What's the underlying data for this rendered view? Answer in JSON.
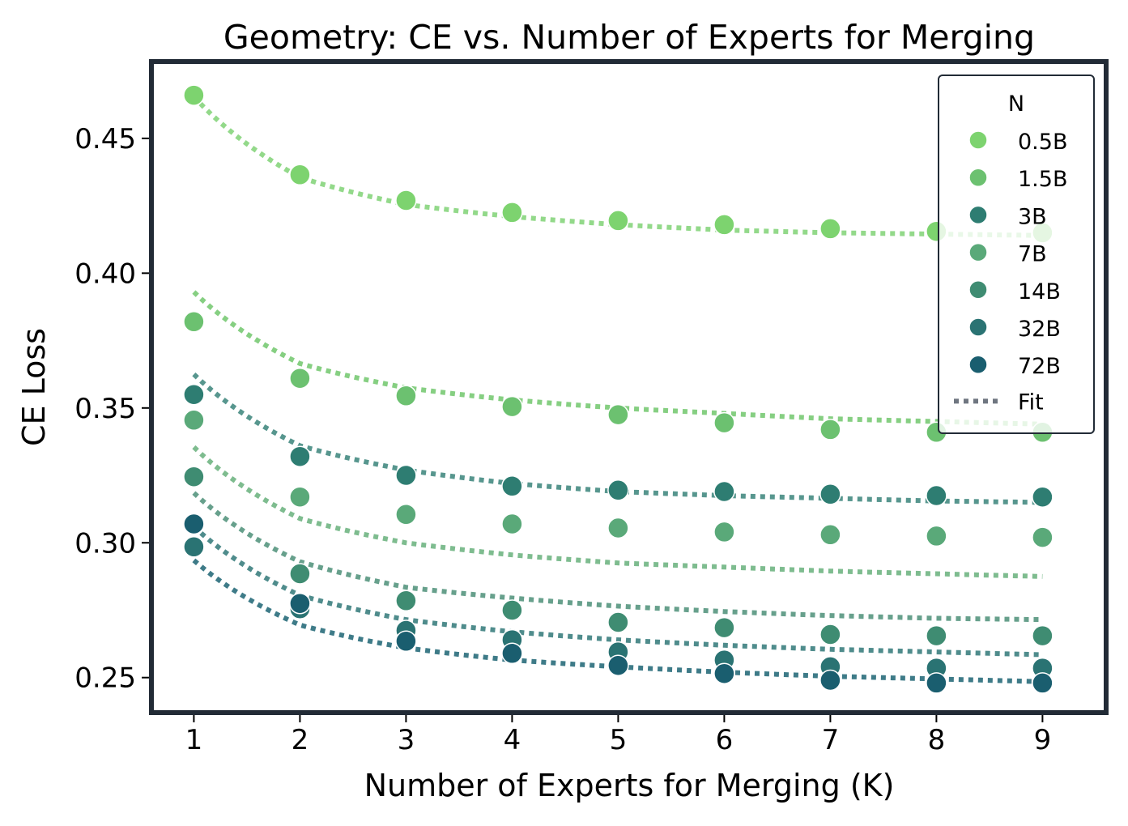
{
  "chart_data": {
    "type": "scatter",
    "title": "Geometry: CE vs. Number of Experts for Merging",
    "xlabel": "Number of Experts for Merging (K)",
    "ylabel": "CE Loss",
    "xlim": [
      0.6,
      9.6
    ],
    "ylim": [
      0.237,
      0.4785
    ],
    "xticks": [
      1,
      2,
      3,
      4,
      5,
      6,
      7,
      8,
      9
    ],
    "yticks": [
      0.25,
      0.3,
      0.35,
      0.4,
      0.45
    ],
    "ytick_labels": [
      "0.25",
      "0.30",
      "0.35",
      "0.40",
      "0.45"
    ],
    "x": [
      1,
      2,
      3,
      4,
      5,
      6,
      7,
      8,
      9
    ],
    "legend": {
      "title": "N",
      "position": "top-right",
      "fit_label": "Fit"
    },
    "grid": false,
    "series": [
      {
        "name": "0.5B",
        "color": "#7dd36f",
        "values": [
          0.466,
          0.4365,
          0.427,
          0.4225,
          0.4195,
          0.418,
          0.4165,
          0.4155,
          0.415
        ],
        "fit": {
          "color": "#93d98a",
          "values": [
            0.4655,
            0.4355,
            0.4255,
            0.421,
            0.418,
            0.416,
            0.415,
            0.4145,
            0.414
          ]
        }
      },
      {
        "name": "1.5B",
        "color": "#6cc170",
        "values": [
          0.382,
          0.361,
          0.3545,
          0.3505,
          0.3475,
          0.3445,
          0.342,
          0.341,
          0.341
        ],
        "fit": {
          "color": "#86cf82",
          "values": [
            0.393,
            0.3665,
            0.3575,
            0.353,
            0.35,
            0.348,
            0.346,
            0.345,
            0.344
          ]
        }
      },
      {
        "name": "3B",
        "color": "#2e7d72",
        "values": [
          0.355,
          0.332,
          0.325,
          0.321,
          0.3195,
          0.319,
          0.318,
          0.3175,
          0.317
        ],
        "fit": {
          "color": "#57968e",
          "values": [
            0.3625,
            0.336,
            0.327,
            0.322,
            0.319,
            0.3175,
            0.3165,
            0.3155,
            0.315
          ]
        }
      },
      {
        "name": "7B",
        "color": "#5aa979",
        "values": [
          0.3455,
          0.317,
          0.3105,
          0.307,
          0.3055,
          0.304,
          0.303,
          0.3025,
          0.302
        ],
        "fit": {
          "color": "#7ebc8f",
          "values": [
            0.3355,
            0.309,
            0.3,
            0.2955,
            0.2925,
            0.291,
            0.2895,
            0.2885,
            0.2875
          ]
        }
      },
      {
        "name": "14B",
        "color": "#3f8c72",
        "values": [
          0.3245,
          0.2885,
          0.2785,
          0.275,
          0.2705,
          0.2685,
          0.266,
          0.2655,
          0.2655
        ],
        "fit": {
          "color": "#67a08c",
          "values": [
            0.3185,
            0.293,
            0.2835,
            0.2795,
            0.2765,
            0.2745,
            0.273,
            0.272,
            0.2715
          ]
        }
      },
      {
        "name": "32B",
        "color": "#2a7373",
        "values": [
          0.2985,
          0.2755,
          0.2675,
          0.264,
          0.2595,
          0.2565,
          0.254,
          0.2535,
          0.2535
        ],
        "fit": {
          "color": "#4f8c8c",
          "values": [
            0.306,
            0.2805,
            0.2715,
            0.267,
            0.264,
            0.262,
            0.2605,
            0.2595,
            0.2585
          ]
        }
      },
      {
        "name": "72B",
        "color": "#1a5e6f",
        "values": [
          0.307,
          0.2775,
          0.2635,
          0.259,
          0.2545,
          0.2515,
          0.249,
          0.248,
          0.248
        ],
        "fit": {
          "color": "#3e7b88",
          "values": [
            0.2935,
            0.2695,
            0.261,
            0.2565,
            0.254,
            0.252,
            0.2505,
            0.2495,
            0.2485
          ]
        }
      }
    ]
  }
}
